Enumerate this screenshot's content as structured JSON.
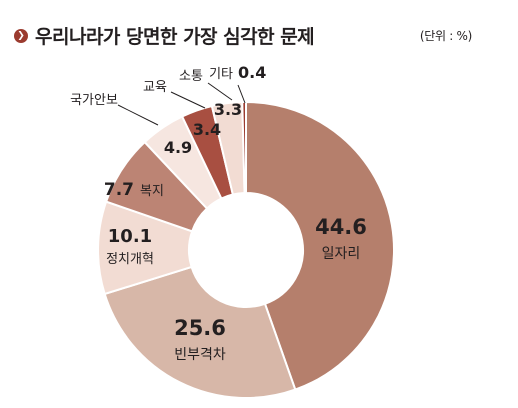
{
  "header": {
    "title": "우리나라가 당면한 가장 심각한 문제",
    "unit": "(단위 : %)"
  },
  "chart_data": {
    "type": "pie",
    "categories": [
      "일자리",
      "빈부격차",
      "정치개혁",
      "복지",
      "국가안보",
      "교육",
      "소통",
      "기타"
    ],
    "values": [
      44.6,
      25.6,
      10.1,
      7.7,
      4.9,
      3.4,
      3.3,
      0.4
    ],
    "value_labels": [
      "44.6",
      "25.6",
      "10.1",
      "7.7",
      "4.9",
      "3.4",
      "3.3",
      "0.4"
    ],
    "title": "우리나라가 당면한 가장 심각한 문제",
    "unit": "(단위 : %)",
    "colors": [
      "#b57f6c",
      "#d7b7a8",
      "#f2dcd3",
      "#bc8474",
      "#f6e6e0",
      "#a84f41",
      "#f2dcd3",
      "#9b3b2f"
    ]
  }
}
